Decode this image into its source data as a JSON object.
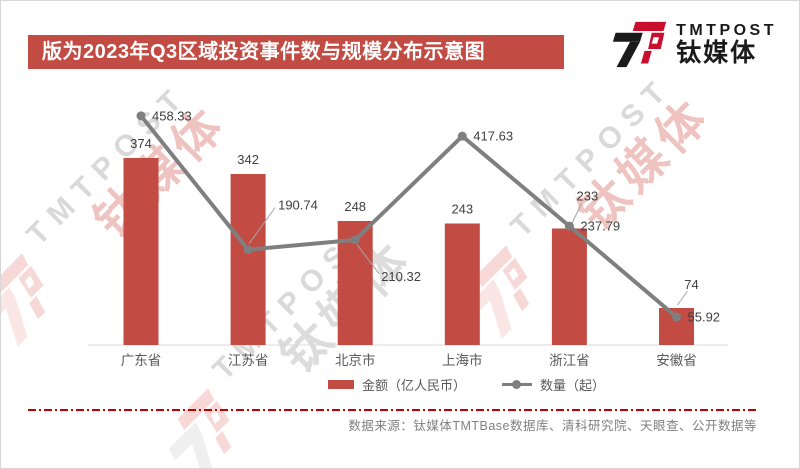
{
  "title_banner": {
    "text": "版为2023年Q3区域投资事件数与规模分布示意图"
  },
  "logo": {
    "brand_en": "TMTPOST",
    "brand_cn": "钛媒体"
  },
  "watermark": {
    "en": "TMTPOST",
    "cn": "钛媒体"
  },
  "source_note": "数据来源：钛媒体TMTBase数据库、清科研究院、天眼查、公开数据等",
  "colors": {
    "bar": "#c24b44",
    "line": "#7f7f7f",
    "banner_bg": "#c24b44",
    "value_label": "#404040",
    "axis_line": "#d9d9d9",
    "leader_line": "#a6a6a6",
    "x_label": "#595959",
    "divider_red": "#c00000",
    "source_gray": "#808080",
    "logo_red": "#c8102e",
    "logo_black": "#1a1a1a"
  },
  "chart_data": {
    "type": "bar+line",
    "title": "版为2023年Q3区域投资事件数与规模分布示意图",
    "categories": [
      "广东省",
      "江苏省",
      "北京市",
      "上海市",
      "浙江省",
      "安徽省"
    ],
    "series": [
      {
        "name": "金额（亿人民币）",
        "type": "bar",
        "color": "#c24b44",
        "values": [
          374,
          342,
          248,
          243,
          233,
          74
        ]
      },
      {
        "name": "数量（起）",
        "type": "line",
        "color": "#7f7f7f",
        "values": [
          458.33,
          190.74,
          210.32,
          417.63,
          237.79,
          55.92
        ]
      }
    ],
    "xlabel": "",
    "ylabel": "",
    "ylim": [
      0,
      516
    ],
    "grid": false,
    "legend_position": "bottom",
    "label_hints": {
      "bar": {
        "4": {
          "dx": 18,
          "dy": -28,
          "leader": [
            2,
            -4,
            12,
            -25
          ]
        },
        "5": {
          "dx": 15,
          "dy": -19,
          "leader": [
            1,
            -3,
            11,
            -17
          ]
        }
      },
      "line": {
        "1": {
          "dx": 30,
          "dy": -40,
          "leader": [
            1,
            -6,
            27,
            -42
          ]
        },
        "2": {
          "dx": 26,
          "dy": 41,
          "leader": [
            2,
            5,
            24,
            34
          ]
        }
      }
    }
  }
}
